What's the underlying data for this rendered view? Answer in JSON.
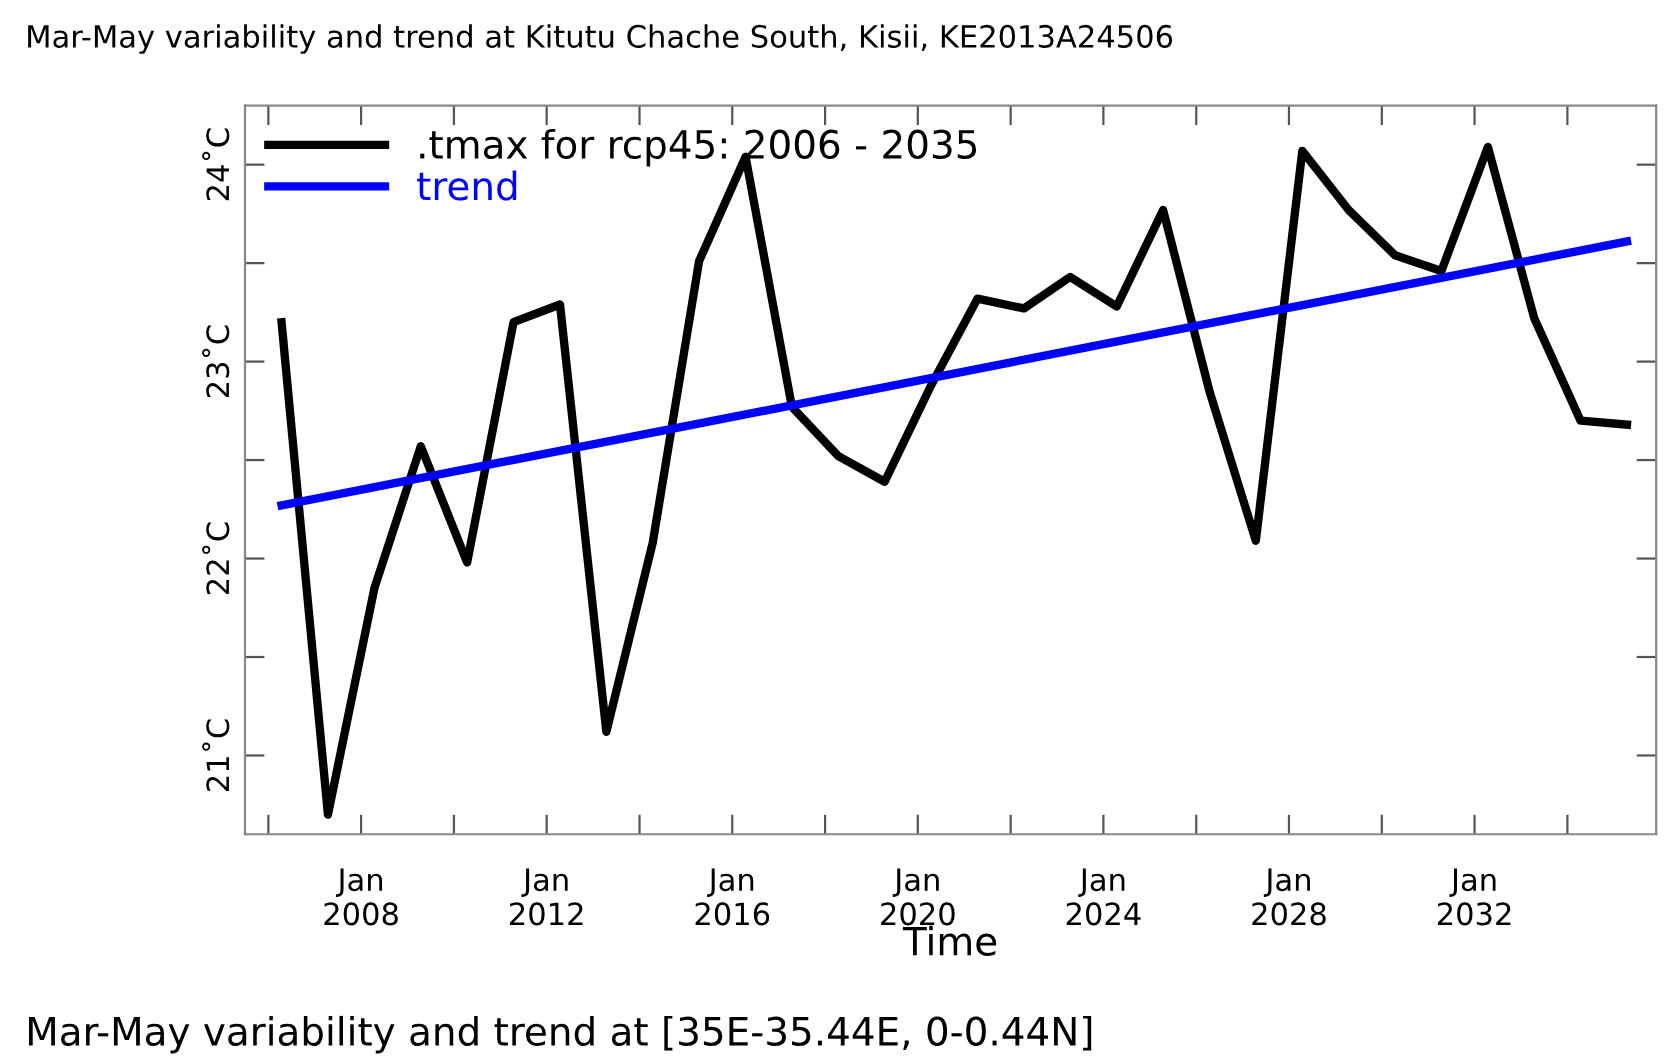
{
  "chart_data": {
    "type": "line",
    "title": "Mar-May variability and trend at Kitutu Chache South, Kisii, KE2013A24506",
    "xlabel": "Time",
    "annotations": [
      "Mar-May variability and trend at [35E-35.44E, 0-0.44N]"
    ],
    "x": [
      "2006-04",
      "2007-04",
      "2008-04",
      "2009-04",
      "2010-04",
      "2011-04",
      "2012-04",
      "2013-04",
      "2014-04",
      "2015-04",
      "2016-04",
      "2017-04",
      "2018-04",
      "2019-04",
      "2020-04",
      "2021-04",
      "2022-04",
      "2023-04",
      "2024-04",
      "2025-04",
      "2026-04",
      "2027-04",
      "2028-04",
      "2029-04",
      "2030-04",
      "2031-04",
      "2032-04",
      "2033-04",
      "2034-04",
      "2035-04"
    ],
    "series": [
      {
        "name": ".tmax for rcp45: 2006 - 2035",
        "color": "#000000",
        "values": [
          23.2,
          20.7,
          21.85,
          22.57,
          21.98,
          23.2,
          23.29,
          21.12,
          22.08,
          23.51,
          24.04,
          22.77,
          22.52,
          22.39,
          22.88,
          23.32,
          23.27,
          23.43,
          23.28,
          23.77,
          22.85,
          22.09,
          24.07,
          23.77,
          23.54,
          23.46,
          24.09,
          23.22,
          22.7,
          22.68
        ]
      },
      {
        "name": "trend",
        "color": "#0000ff",
        "x": [
          "2006-04",
          "2035-04"
        ],
        "values": [
          22.27,
          23.61
        ]
      }
    ],
    "xlim": [
      "2005-07",
      "2035-12"
    ],
    "xticks": [
      {
        "value": "2006-01",
        "label": null
      },
      {
        "value": "2008-01",
        "label": "Jan\n2008"
      },
      {
        "value": "2010-01",
        "label": null
      },
      {
        "value": "2012-01",
        "label": "Jan\n2012"
      },
      {
        "value": "2014-01",
        "label": null
      },
      {
        "value": "2016-01",
        "label": "Jan\n2016"
      },
      {
        "value": "2018-01",
        "label": null
      },
      {
        "value": "2020-01",
        "label": "Jan\n2020"
      },
      {
        "value": "2022-01",
        "label": null
      },
      {
        "value": "2024-01",
        "label": "Jan\n2024"
      },
      {
        "value": "2026-01",
        "label": null
      },
      {
        "value": "2028-01",
        "label": "Jan\n2028"
      },
      {
        "value": "2030-01",
        "label": null
      },
      {
        "value": "2032-01",
        "label": "Jan\n2032"
      },
      {
        "value": "2034-01",
        "label": null
      }
    ],
    "ylim": [
      20.6,
      24.3
    ],
    "yticks": [
      {
        "value": 21,
        "label": "21˚C"
      },
      {
        "value": 21.5,
        "label": null
      },
      {
        "value": 22,
        "label": "22˚C"
      },
      {
        "value": 22.5,
        "label": null
      },
      {
        "value": 23,
        "label": "23˚C"
      },
      {
        "value": 23.5,
        "label": null
      },
      {
        "value": 24,
        "label": "24˚C"
      }
    ],
    "legend": "top left",
    "grid": false,
    "marker": "none",
    "line_style": "solid"
  }
}
